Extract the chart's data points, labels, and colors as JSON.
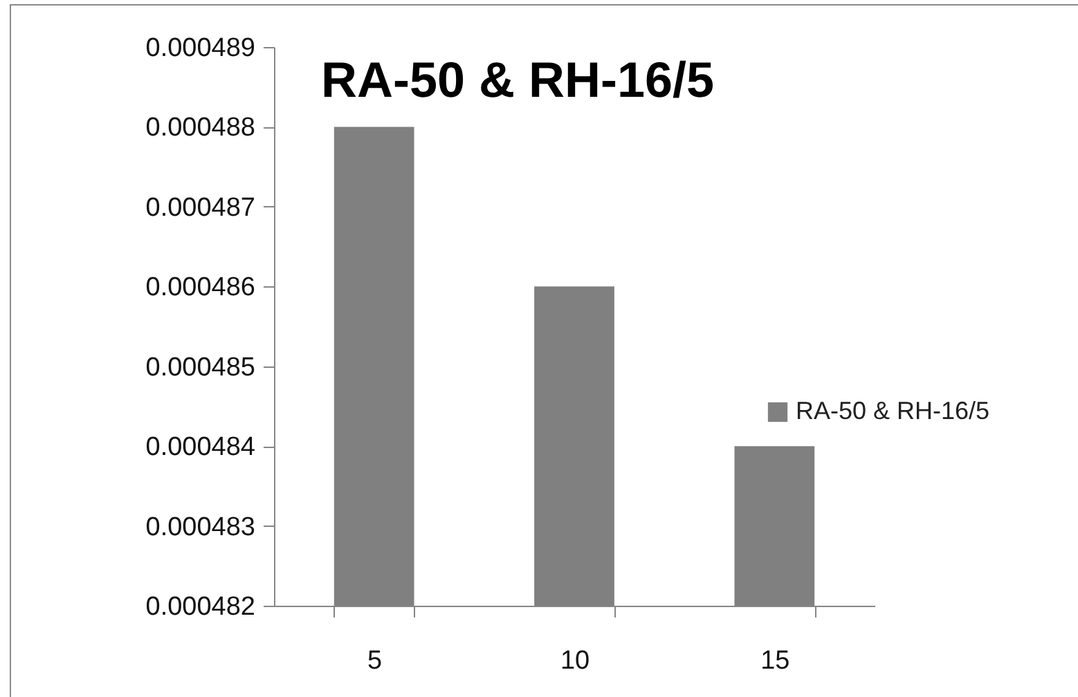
{
  "chart_data": {
    "type": "bar",
    "title": "RA-50 & RH-16/5",
    "categories": [
      "5",
      "10",
      "15"
    ],
    "series": [
      {
        "name": "RA-50 & RH-16/5",
        "color": "#808080",
        "values": [
          0.000488,
          0.000486,
          0.000484
        ]
      }
    ],
    "ylim": [
      0.000482,
      0.000489
    ],
    "yticks": [
      0.000482,
      0.000483,
      0.000484,
      0.000485,
      0.000486,
      0.000487,
      0.000488,
      0.000489
    ],
    "grid": false,
    "legend": "right"
  }
}
